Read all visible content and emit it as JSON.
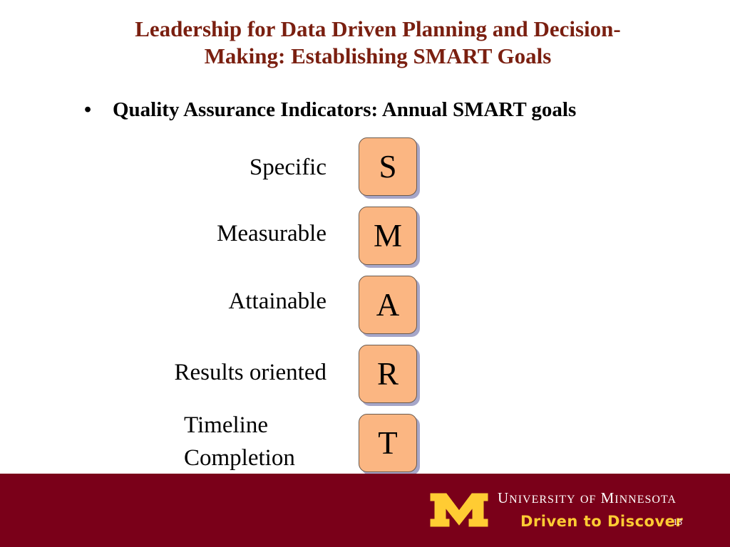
{
  "title": {
    "line1": "Leadership for Data Driven Planning and Decision-",
    "line2": "Making: Establishing SMART Goals"
  },
  "bullet": {
    "marker": "•",
    "text": "Quality Assurance Indicators: Annual SMART goals"
  },
  "smart": [
    {
      "letter": "S",
      "label": "Specific"
    },
    {
      "letter": "M",
      "label": "Measurable"
    },
    {
      "letter": "A",
      "label": "Attainable"
    },
    {
      "letter": "R",
      "label": "Results oriented"
    },
    {
      "letter": "T",
      "label_line1": "Timeline",
      "label_line2": "Completion"
    }
  ],
  "footer": {
    "university_part1": "University",
    "university_of": "of",
    "university_part2": "Minnesota",
    "tagline": "Driven to Discover",
    "page_number": "13"
  },
  "colors": {
    "title": "#7a1f10",
    "tile_fill": "#fbb682",
    "footer_bg": "#7a0019",
    "gold": "#ffcc33"
  }
}
